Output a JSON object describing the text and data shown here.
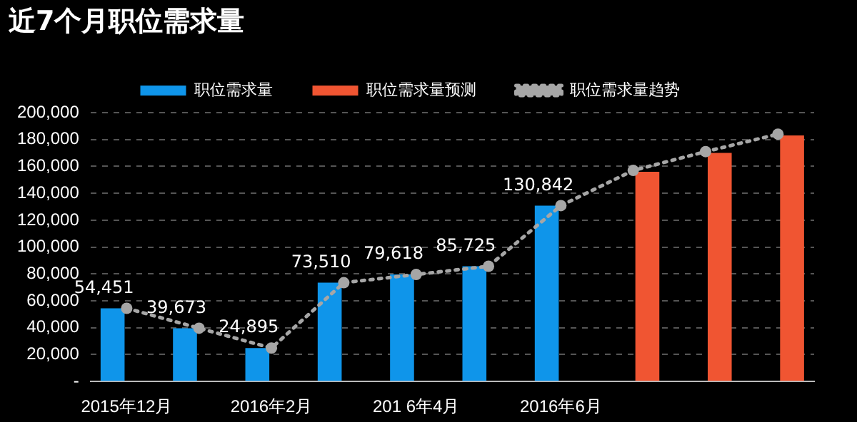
{
  "chart_data": {
    "type": "bar",
    "title": "近7个月职位需求量",
    "categories": [
      "2015年12月",
      null,
      "2016年2月",
      null,
      "201 6年4月",
      null,
      "2016年6月",
      null,
      null,
      null
    ],
    "series": [
      {
        "name": "职位需求量",
        "color": "#0f95ea",
        "values": [
          54451,
          39673,
          24895,
          73510,
          79618,
          85725,
          130842,
          null,
          null,
          null
        ],
        "value_labels": [
          "54,451",
          "39,673",
          "24,895",
          "73,510",
          "79,618",
          "85,725",
          "130,842",
          null,
          null,
          null
        ]
      },
      {
        "name": "职位需求量预测",
        "color": "#f05532",
        "values": [
          null,
          null,
          null,
          null,
          null,
          null,
          null,
          156000,
          170000,
          183000
        ]
      },
      {
        "name": "职位需求量趋势",
        "type": "line",
        "color": "#a6a6a6",
        "values": [
          54451,
          39673,
          24895,
          73510,
          79618,
          85725,
          130842,
          157000,
          171000,
          184000
        ]
      }
    ],
    "ylim": [
      0,
      200000
    ],
    "yticks": [
      {
        "value": 0,
        "label": "-"
      },
      {
        "value": 20000,
        "label": "20,000"
      },
      {
        "value": 40000,
        "label": "40,000"
      },
      {
        "value": 60000,
        "label": "60,000"
      },
      {
        "value": 80000,
        "label": "80,000"
      },
      {
        "value": 100000,
        "label": "100,000"
      },
      {
        "value": 120000,
        "label": "120,000"
      },
      {
        "value": 140000,
        "label": "140,000"
      },
      {
        "value": 160000,
        "label": "160,000"
      },
      {
        "value": 180000,
        "label": "180,000"
      },
      {
        "value": 200000,
        "label": "200,000"
      }
    ],
    "grid": "y",
    "legend": "top",
    "marker": "circle",
    "line_style": "dotted"
  }
}
